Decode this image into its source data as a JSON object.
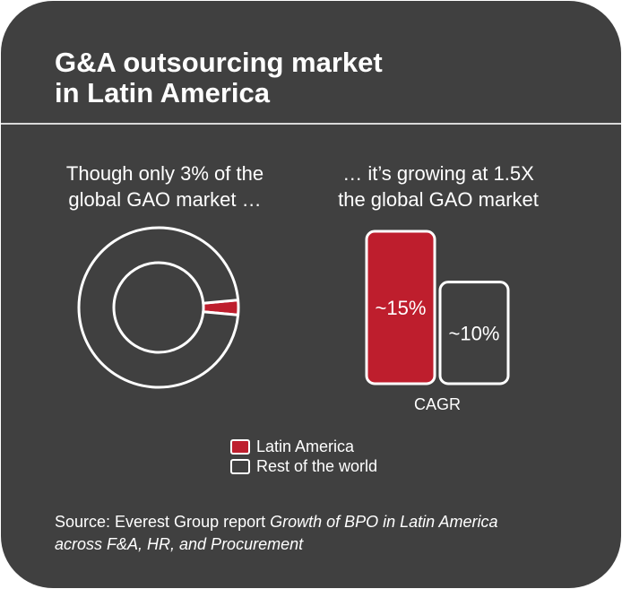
{
  "header": {
    "title_line1": "G&A outsourcing market",
    "title_line2": "in Latin America"
  },
  "colors": {
    "background": "#404040",
    "latin_america": "#be1e2d",
    "rest_of_world": "#404040",
    "outline": "#ffffff"
  },
  "chart_data": [
    {
      "type": "pie",
      "variant": "donut",
      "title": "Though only 3% of the global GAO market …",
      "slices": [
        {
          "name": "Latin America",
          "value": 3
        },
        {
          "name": "Rest of the world",
          "value": 97
        }
      ]
    },
    {
      "type": "bar",
      "title": "… it’s growing at 1.5X the global GAO market",
      "xlabel": "CAGR",
      "categories": [
        "Latin America",
        "Rest of the world"
      ],
      "values": [
        15,
        10
      ],
      "data_labels": [
        "~15%",
        "~10%"
      ],
      "unit": "%"
    }
  ],
  "left_sub": {
    "line1": "Though only 3% of the",
    "line2": "global GAO market …"
  },
  "right_sub": {
    "line1": "… it’s growing at 1.5X",
    "line2": "the global GAO market"
  },
  "legend": [
    {
      "label": "Latin America"
    },
    {
      "label": "Rest of the world"
    }
  ],
  "source": {
    "prefix": "Source: Everest Group report ",
    "italic_line1": "Growth of BPO in Latin America",
    "italic_line2": "across F&A, HR, and Procurement"
  }
}
